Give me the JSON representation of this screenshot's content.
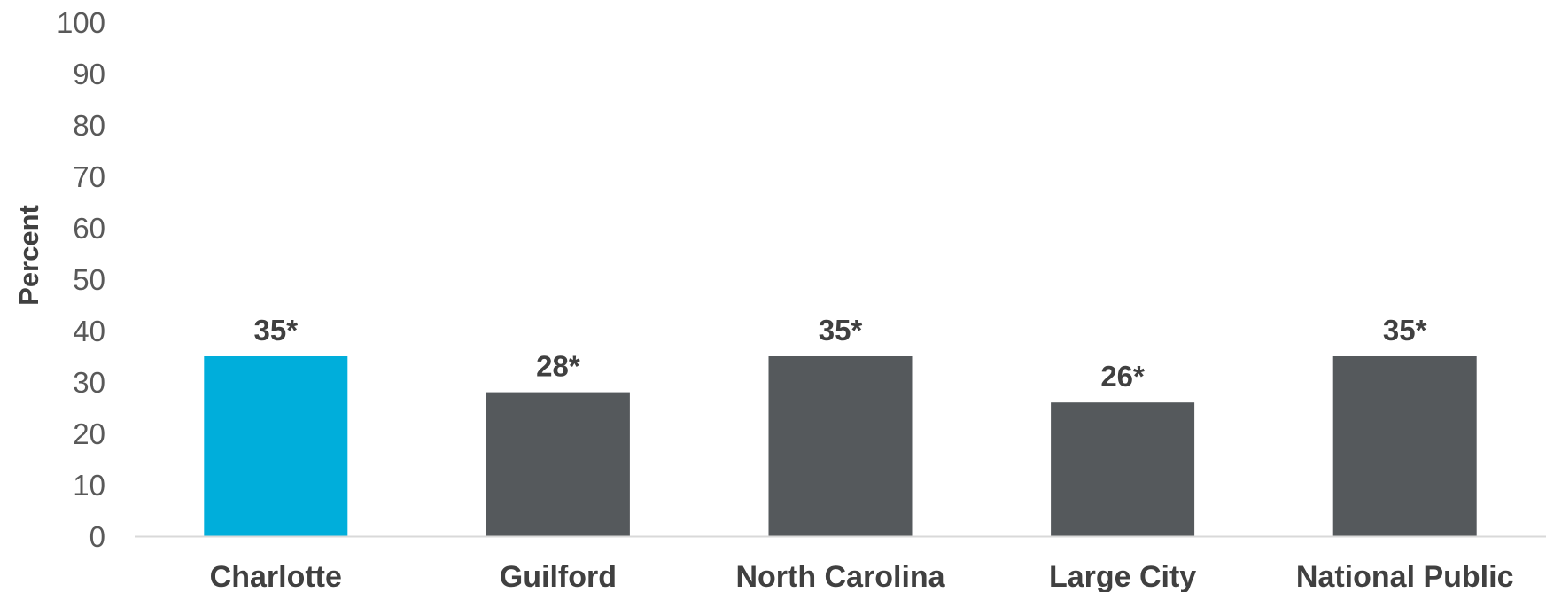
{
  "chart_data": {
    "type": "bar",
    "title": "",
    "xlabel": "",
    "ylabel": "Percent",
    "ylim": [
      0,
      100
    ],
    "yticks": [
      0,
      10,
      20,
      30,
      40,
      50,
      60,
      70,
      80,
      90,
      100
    ],
    "categories": [
      "Charlotte",
      "Guilford",
      "North Carolina",
      "Large City",
      "National Public"
    ],
    "values": [
      35,
      28,
      35,
      26,
      35
    ],
    "data_labels": [
      "35*",
      "28*",
      "35*",
      "26*",
      "35*"
    ],
    "grid": false,
    "legend": "none",
    "colors": {
      "highlight": "#00AEDB",
      "bar": "#55595C",
      "axis": "#D9D9D9"
    },
    "highlight_index": 0
  }
}
